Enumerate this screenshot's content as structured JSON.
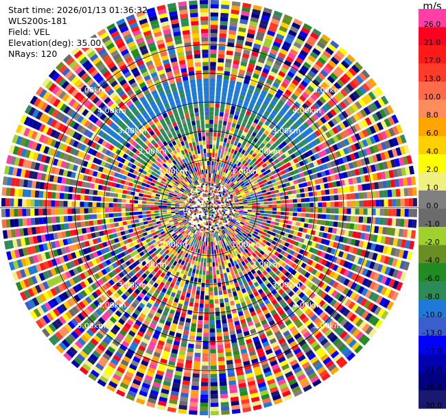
{
  "info": {
    "start_time": "Start time: 2026/01/13 01:36:32",
    "instrument": "WLS200s-181",
    "field": "Field: VEL",
    "elevation": "Elevation(deg): 35.00",
    "nrays": "NRays: 120"
  },
  "range_rings": {
    "labels": [
      "1.00km",
      "2.00km",
      "3.00km",
      "4.00km",
      "5.00km"
    ],
    "ring_count": 5,
    "label_color": "#ffffff",
    "ring_color": "#000000"
  },
  "colorbar": {
    "unit": "m/s",
    "levels": [
      {
        "label": "26.0",
        "color": "#ff3fa6"
      },
      {
        "label": "21.0",
        "color": "#ff0020"
      },
      {
        "label": "17.0",
        "color": "#ff1a1a"
      },
      {
        "label": "13.0",
        "color": "#ff3c2a"
      },
      {
        "label": "10.0",
        "color": "#ff6a4a"
      },
      {
        "label": "8.0",
        "color": "#ff8c5a"
      },
      {
        "label": "6.0",
        "color": "#ffa500"
      },
      {
        "label": "4.0",
        "color": "#ffd000"
      },
      {
        "label": "2.0",
        "color": "#ffff00"
      },
      {
        "label": "1.0",
        "color": "#f0f080"
      },
      {
        "label": "0.0",
        "color": "#808080"
      },
      {
        "label": "-1.0",
        "color": "#6b6b6b"
      },
      {
        "label": "-2.0",
        "color": "#a0d030"
      },
      {
        "label": "-4.0",
        "color": "#6b8e23"
      },
      {
        "label": "-6.0",
        "color": "#228b22"
      },
      {
        "label": "-8.0",
        "color": "#2e8b57"
      },
      {
        "label": "-10.0",
        "color": "#1e7ad6"
      },
      {
        "label": "-13.0",
        "color": "#3a5fcd"
      },
      {
        "label": "-17.0",
        "color": "#0000ff"
      },
      {
        "label": "-21.0",
        "color": "#0000b0"
      },
      {
        "label": "-26.0",
        "color": "#000080"
      },
      {
        "label": "-30.0",
        "color": "#191970"
      }
    ]
  },
  "palette": [
    "#ff3fa6",
    "#ff0020",
    "#ff1a1a",
    "#ff3c2a",
    "#ff6a4a",
    "#ff8c5a",
    "#ffa500",
    "#ffd000",
    "#ffff00",
    "#f0f080",
    "#808080",
    "#6b6b6b",
    "#a0d030",
    "#6b8e23",
    "#228b22",
    "#2e8b57",
    "#1e7ad6",
    "#3a5fcd",
    "#0000ff",
    "#0000b0",
    "#000080",
    "#191970"
  ]
}
